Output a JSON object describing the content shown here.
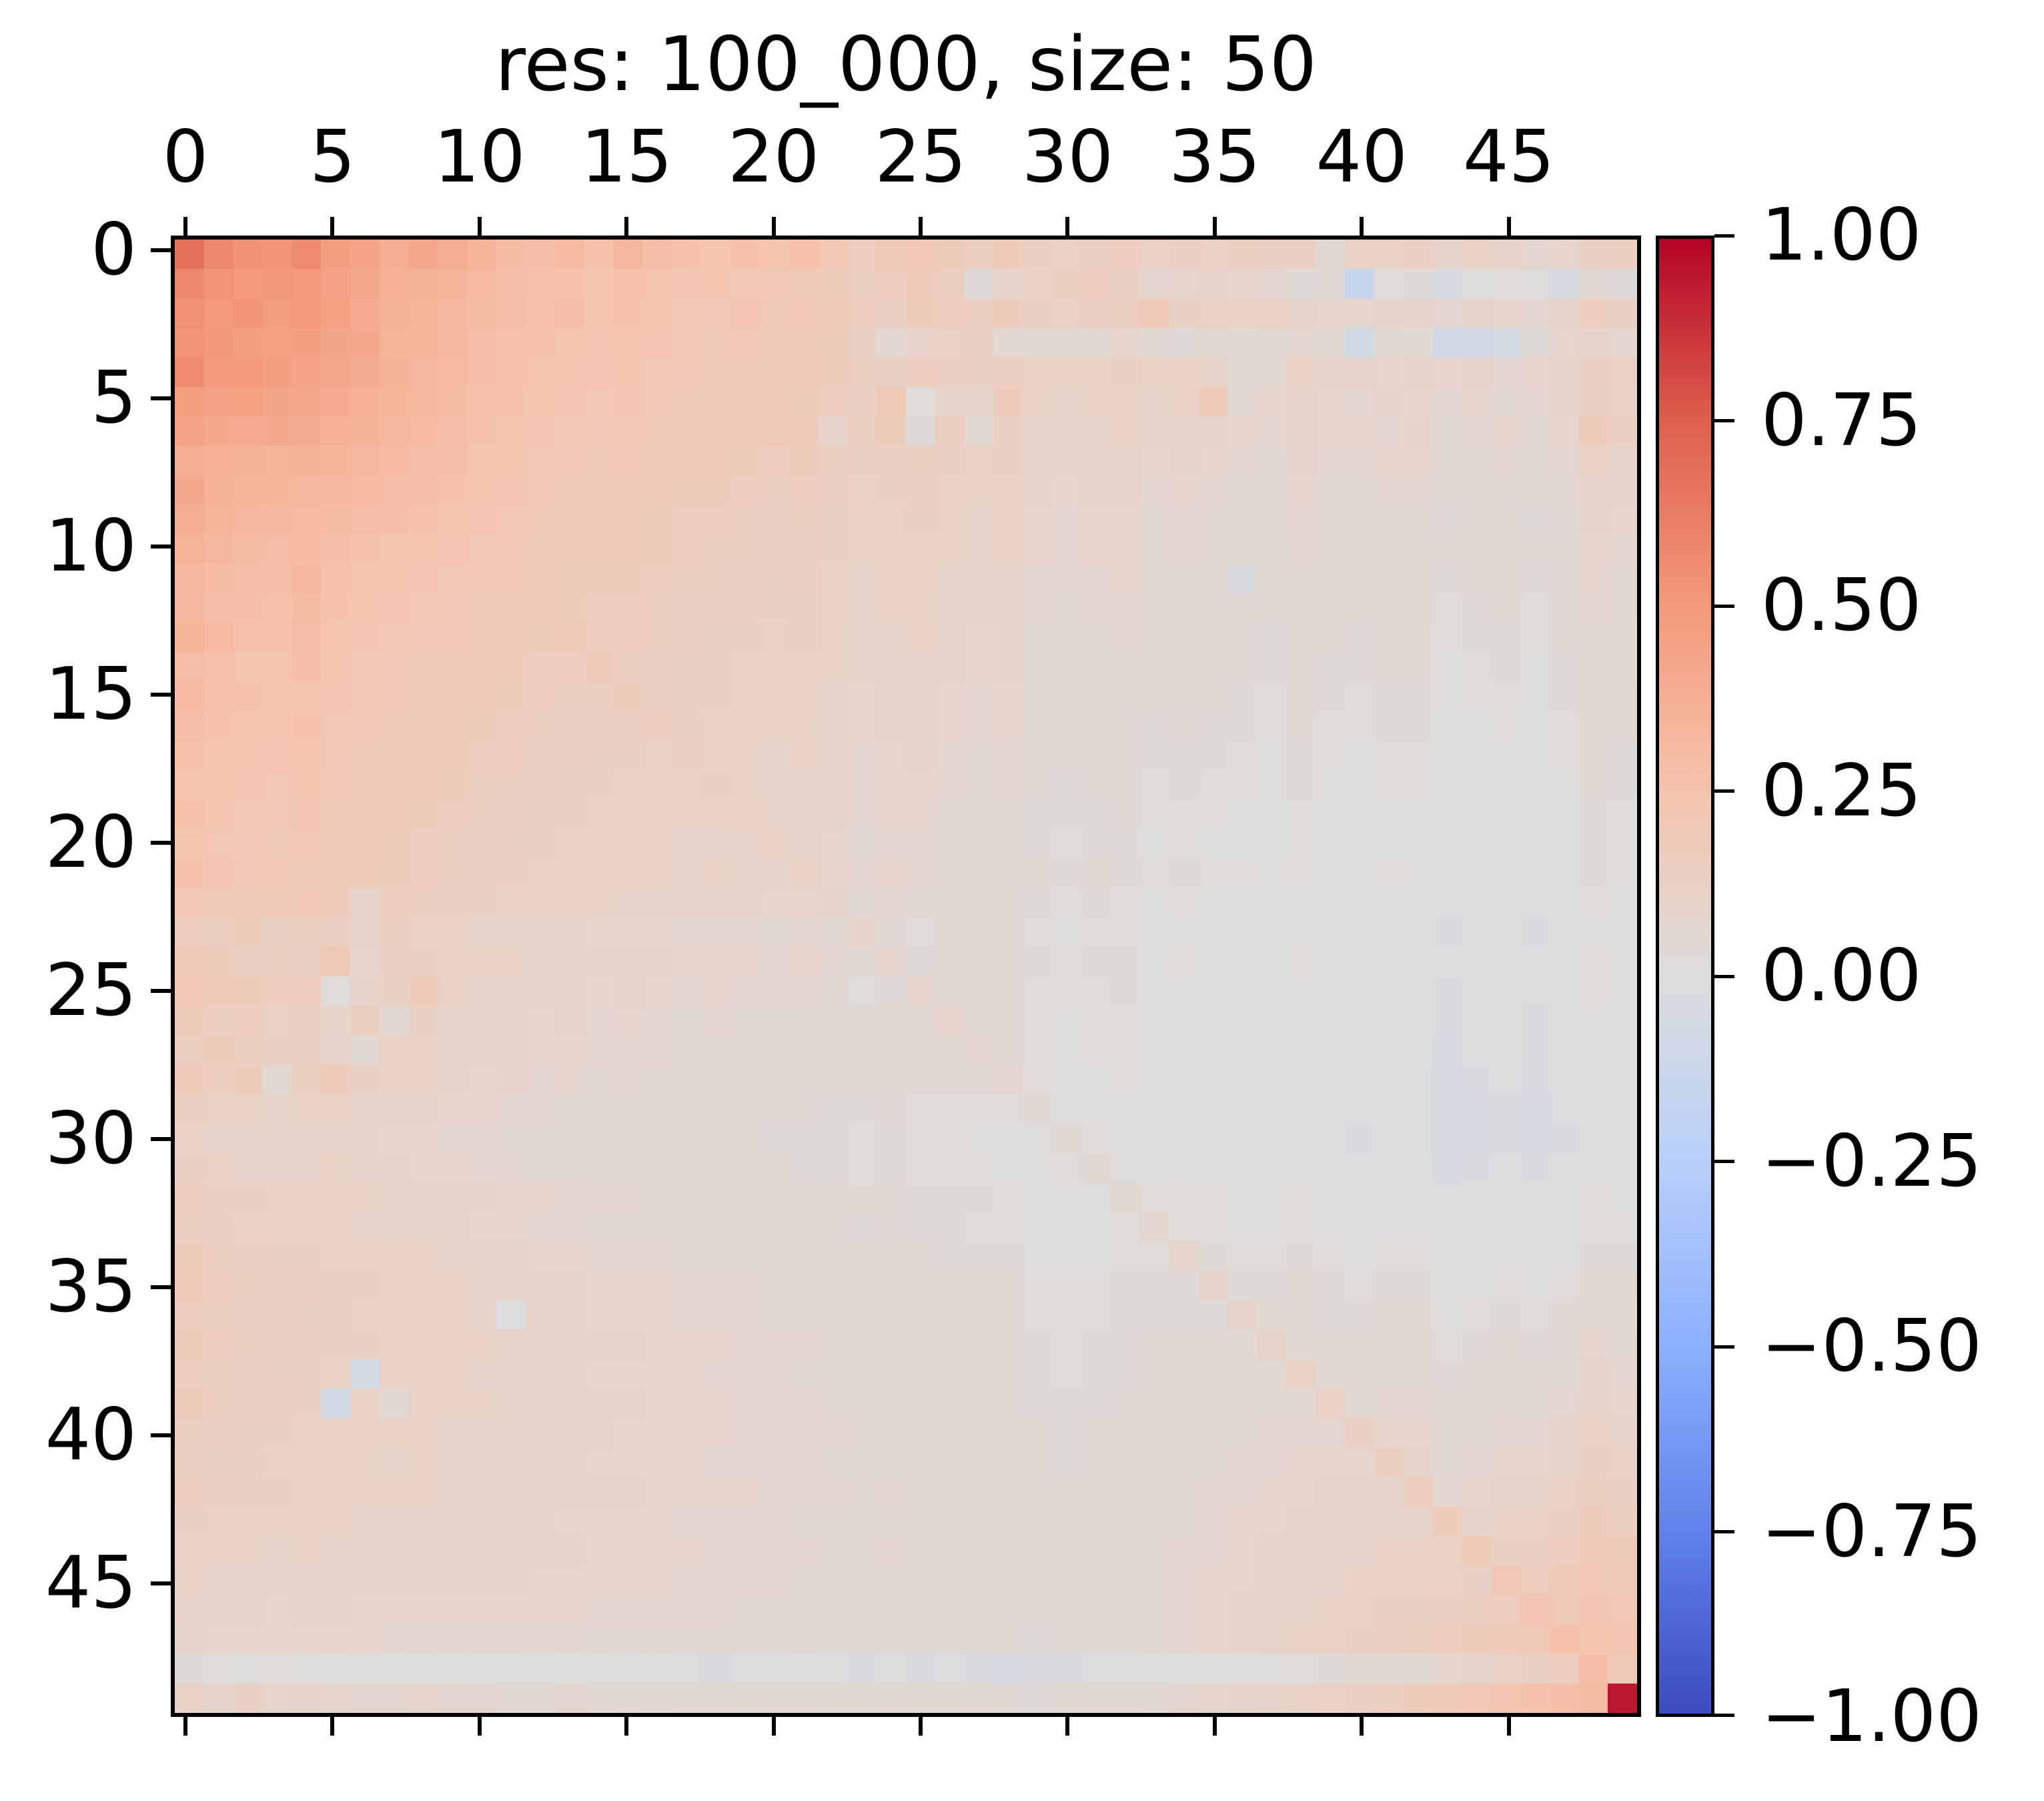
{
  "title": "res: 100_000, size: 50",
  "colors": {
    "background": "#ffffff",
    "spine": "#000000",
    "text": "#000000",
    "colormap_name": "coolwarm",
    "colormap_anchors": [
      [
        -1.0,
        [
          59,
          76,
          192
        ]
      ],
      [
        -0.75,
        [
          98,
          130,
          234
        ]
      ],
      [
        -0.5,
        [
          141,
          176,
          254
        ]
      ],
      [
        -0.25,
        [
          184,
          208,
          249
        ]
      ],
      [
        0.0,
        [
          221,
          221,
          220
        ]
      ],
      [
        0.25,
        [
          245,
          196,
          173
        ]
      ],
      [
        0.5,
        [
          244,
          154,
          123
        ]
      ],
      [
        0.75,
        [
          222,
          97,
          77
        ]
      ],
      [
        1.0,
        [
          180,
          4,
          38
        ]
      ]
    ]
  },
  "chart_data": {
    "type": "heatmap",
    "title": "res: 100_000, size: 50",
    "size": 50,
    "x_ticks": [
      0,
      5,
      10,
      15,
      20,
      25,
      30,
      35,
      40,
      45
    ],
    "y_ticks": [
      0,
      5,
      10,
      15,
      20,
      25,
      30,
      35,
      40,
      45
    ],
    "x_tick_side": "top",
    "y_tick_side": "left",
    "grid": false,
    "vmin": -1.0,
    "vmax": 1.0,
    "colorbar": {
      "position": "right",
      "tick_values": [
        1.0,
        0.75,
        0.5,
        0.25,
        0.0,
        -0.25,
        -0.5,
        -0.75,
        -1.0
      ],
      "tick_labels": [
        "1.00",
        "0.75",
        "0.50",
        "0.25",
        "0.00",
        "−0.25",
        "−0.50",
        "−0.75",
        "−1.00"
      ]
    },
    "matrix_scale": 100,
    "matrix_rows_x100": [
      "68 58 54 52 57 47 44 38 41 38 34 30 28 31 26 33 28 26 24 27 25 26 22 16 19 21 17 15 18 14 12 14 16 12 14 12 15 13 14 6 11 12 14 9 11 9 7 8 13 15",
      "58 53 50 51 50 45 41 37 36 34 31 28 27 26 25 27 25 23 24 22 21 19 17 15 16 18 15 3 10 12 15 16 13 7 8 9 8 7 3 4 -15 2 3 -5 0 2 1 -4 5 3",
      "54 50 52 48 50 46 40 36 35 33 30 29 26 28 24 26 24 22 21 23 20 21 19 16 14 17 16 15 17 13 12 14 15 20 13 12 11 12 10 8 8 9 10 7 9 8 7 9 16 13",
      "52 51 48 46 47 43 41 35 34 32 29 27 26 25 23 25 23 22 20 21 19 18 17 13 5 10 12 13 6 6 5 6 8 4 3 6 4 5 7 6 -8 5 4 -8 -7 -6 3 8 9 7",
      "57 50 50 47 44 42 39 36 33 31 28 27 25 24 23 24 22 21 20 20 18 19 17 15 13 16 14 13 15 12 11 12 13 11 12 10 5 6 11 9 9 8 10 8 9 7 8 10 14 12",
      "47 45 46 43 42 40 37 34 32 30 27 26 24 23 22 23 21 20 19 19 18 17 16 14 20 2 9 9 18 11 10 11 12 10 11 18 5 8 9 8 7 9 8 7 8 6 7 9 13 11",
      "44 41 40 41 39 37 36 33 31 29 26 25 23 22 21 22 20 19 19 18 20 18 10 15 17 3 15 6 13 10 9 10 11 9 10 9 8 7 10 8 8 7 9 6 7 8 6 8 17 14",
      "38 37 36 35 36 34 33 31 29 28 25 24 22 21 20 21 19 18 18 17 16 17 15 13 14 15 13 12 13 10 9 10 10 8 9 8 7 6 9 7 7 8 8 5 6 7 5 7 12 10",
      "41 36 35 34 33 32 31 29 28 26 24 23 21 20 19 20 18 17 17 16 15 16 14 12 13 14 12 11 12 9 8 9 9 7 8 7 6 5 8 6 6 7 7 4 5 6 4 6 10 9",
      "38 35 33 32 31 30 29 28 26 25 23 22 20 19 18 19 17 16 16 15 14 15 13 11 12 13 11 10 11 8 7 8 8 6 7 6 5 4 7 5 5 6 6 3 4 5 3 5 9 8",
      "35 32 30 29 31 28 26 25 24 23 22 21 19 18 18 18 17 16 15 15 14 14 13 11 12 12 11 10 11 8 7 8 8 6 7 6 6 5 7 5 5 6 6 4 4 5 4 5 8 7",
      "33 30 29 28 32 27 25 24 23 22 21 22 18 17 17 17 16 15 15 14 13 14 12 10 11 12 10 9 10 7 7 7 8 6 6 6 -3 4 6 5 4 5 5 3 4 4 3 5 8 6",
      "32 29 28 27 30 26 24 23 22 21 20 19 20 17 16 16 15 14 14 14 13 13 12 10 11 11 10 9 10 7 6 7 7 5 6 5 5 4 6 4 4 5 5 2 3 4 2 4 7 6",
      "34 31 27 26 29 25 23 22 21 21 19 18 17 19 16 16 15 14 13 13 12 13 11 9 10 11 9 8 9 6 6 6 7 5 5 5 4 3 5 4 3 4 4 2 3 3 2 4 6 5",
      "29 27 25 25 28 24 22 21 20 20 18 18 16 16 18 15 14 13 13 12 12 12 11 9 10 10 9 8 9 6 5 6 6 4 5 4 4 3 5 3 3 4 4 1 2 3 1 3 6 5",
      "31 27 26 25 24 23 22 21 20 19 18 17 16 15 15 17 14 13 13 12 11 12 10 8 9 10 8 7 8 5 5 5 6 4 4 4 3 2 4 3 2 3 3 1 2 2 1 3 5 4",
      "28 26 25 24 26 22 21 20 19 18 17 16 15 14 14 14 16 13 12 12 11 11 10 8 9 9 8 7 8 5 4 5 5 3 4 3 3 2 4 2 2 3 3 0 1 2 0 2 5 4",
      "27 25 24 23 25 21 20 19 18 18 16 16 14 14 13 13 12 14 12 11 10 11 9 7 8 9 7 6 7 4 4 4 5 3 3 3 2 1 3 2 1 2 2 0 1 1 0 2 4 3",
      "25 24 23 22 24 21 19 18 18 17 15 15 14 13 13 12 12 12 13 11 10 10 9 7 8 8 7 6 7 4 3 4 4 2 3 2 2 1 3 1 1 2 2 -1 0 1 -1 1 4 3",
      "27 24 22 21 23 20 19 18 17 16 15 14 13 13 12 12 11 11 11 12 10 10 9 7 8 8 6 5 6 3 3 3 4 2 2 2 1 0 2 1 0 1 1 -1 0 0 -1 1 3 2",
      "24 22 21 20 22 19 20 17 16 15 14 13 13 12 12 11 11 10 10 10 12 9 8 6 7 7 6 5 6 3 2 3 3 1 2 1 1 0 2 0 0 1 1 -2 -1 0 -2 0 3 2",
      "26 23 21 22 19 18 18 17 16 15 13 14 12 12 11 12 11 10 11 10 9 12 8 7 8 7 6 6 5 4 3 4 3 2 3 2 2 1 2 1 1 2 1 -1 0 1 -1 1 3 2",
      "22 20 19 19 21 18 10 16 15 14 13 12 12 11 11 10 10 9 9 9 8 8 10 6 7 6 6 5 5 3 2 3 2 1 2 1 1 0 1 0 0 1 0 -2 -1 0 -2 0 2 1",
      "16 15 17 13 15 14 9 15 12 11 10 10 9 9 8 8 8 7 7 7 6 7 6 9 5 2 5 4 4 2 1 2 2 0 1 0 0 -1 1 -1 -1 0 0 -3 -2 -1 -3 -1 1 0",
      "19 17 14 15 13 20 8 14 13 12 11 11 10 10 9 9 9 8 8 8 7 8 7 5 8 3 6 5 5 3 2 3 3 1 2 1 1 0 2 0 0 1 1 -2 -1 0 -2 0 2 1",
      "21 18 17 16 16 2 9 13 18 11 10 10 9 9 8 10 8 7 8 7 7 7 6 2 3 8 5 4 5 2 2 2 3 1 1 1 0 -1 1 0 -1 0 0 -3 -2 -1 -2 -1 2 1",
      "17 15 16 12 14 9 15 6 13 10 9 10 8 9 7 8 7 6 7 6 6 6 5 5 6 5 8 4 4 2 1 2 2 0 1 0 0 -1 1 -1 -1 0 0 -3 -2 -1 -3 -1 1 0",
      "15 17 15 13 13 9 6 12 11 10 9 9 8 8 7 7 7 6 6 6 5 6 5 4 5 4 4 7 4 2 1 2 2 0 1 0 0 -1 1 -1 -2 0 0 -4 -2 -1 -3 -1 1 0",
      "18 15 17 6 15 18 13 11 12 9 8 9 7 8 6 7 6 5 6 5 5 5 4 4 5 5 4 4 7 2 1 1 2 0 1 0 -1 -2 0 -1 -2 -1 -1 -4 -3 -2 -3 -2 1 0",
      "14 12 11 10 11 11 10 9 9 8 8 7 7 6 6 6 5 5 5 4 4 4 3 3 4 2 2 2 2 5 1 1 1 -1 0 -1 -1 -2 0 -2 -2 -1 -1 -5 -4 -3 -4 -2 0 -1",
      "12 10 9 9 10 10 9 8 8 7 7 6 6 5 5 5 4 4 4 4 3 3 3 2 3 2 2 1 1 1 4 2 1 0 0 -1 -2 -2 -1 -2 -3 -2 -1 -5 -4 -3 -4 -3 -1 -1",
      "13 11 10 9 10 11 9 9 8 8 7 7 6 6 5 5 5 4 4 4 4 3 3 2 3 2 2 2 1 1 2 5 1 0 1 0 -1 -1 0 -1 -2 -1 0 -4 -3 -2 -3 -2 0 0",
      "16 14 13 12 12 12 11 10 10 9 9 8 8 7 7 7 6 6 6 5 5 5 4 4 4 3 3 3 2 1 1 1 6 2 2 2 1 1 2 1 0 1 1 -2 -1 0 -1 0 2 1",
      "15 14 12 12 11 11 10 10 9 9 8 8 7 7 6 6 6 5 5 5 4 5 4 3 4 3 3 2 2 1 0 1 2 7 2 2 1 1 2 1 0 1 1 -2 -1 0 -1 0 2 2",
      "17 15 14 13 13 12 12 11 11 10 9 9 8 8 7 7 7 6 6 6 5 5 5 4 4 4 3 3 3 1 1 1 2 2 8 3 2 2 3 2 1 2 2 -1 0 1 0 1 3 3",
      "18 16 15 14 14 13 13 12 12 11 10 10 9 9 8 8 8 7 7 7 6 6 6 5 5 5 4 4 4 2 2 2 3 3 3 9 3 3 4 3 2 3 3 0 1 2 1 2 5 4",
      "16 15 14 14 13 13 12 12 11 11 10 -2 9 9 8 8 8 7 7 7 6 6 6 5 5 5 4 4 4 2 2 2 3 3 3 3 9 4 4 3 3 4 4 1 2 3 2 4 6 5",
      "17 16 15 14 14 13 13 12 12 11 11 10 10 9 9 9 8 8 8 7 7 7 6 6 6 5 5 5 4 3 2 3 3 4 4 4 4 10 5 4 4 5 5 2 3 4 3 5 8 6",
      "16 15 14 13 13 12 -6 11 12 11 10 10 9 9 8 8 8 8 7 7 7 6 6 5 6 5 5 4 4 3 2 3 3 4 4 4 5 5 11 5 5 6 6 3 4 5 4 6 9 7",
      "17 15 14 14 13 -8 12 5 12 11 11 10 10 9 9 9 8 8 8 7 7 7 6 6 6 5 5 5 4 3 3 3 4 4 5 5 5 6 6 12 6 7 7 4 5 6 5 7 10 8",
      "15 14 13 13 12 12 11 11 12 10 10 10 9 9 9 8 8 8 8 7 7 7 7 6 6 6 6 5 5 4 3 4 4 5 5 6 6 7 7 7 14 8 8 5 6 7 7 9 12 10",
      "14 13 13 12 12 11 11 10 11 10 10 9 9 9 8 8 8 8 7 7 7 7 6 6 6 6 5 5 5 4 3 4 4 5 6 6 7 7 8 8 8 15 9 6 7 8 8 10 13 11",
      "16 14 13 13 12 12 11 11 11 10 10 10 9 9 9 9 8 8 8 8 7 7 7 6 7 6 6 6 5 4 4 4 5 5 6 7 7 8 8 9 9 9 16 7 8 10 10 12 15 13",
      "13 12 12 11 11 11 10 10 10 9 9 9 9 8 8 8 8 7 7 7 7 6 6 6 6 6 6 5 5 4 4 4 5 6 6 7 8 8 9 9 10 10 10 17 10 11 12 14 17 15",
      "12 11 11 10 11 10 10 10 10 9 9 9 9 9 8 8 8 8 7 7 7 7 6 6 7 6 6 6 5 4 4 5 5 6 7 7 8 9 9 10 10 11 11 11 19 13 14 16 19 17",
      "11 10 10 9 10 9 9 9 9 9 9 9 8 8 8 8 8 7 7 7 7 6 6 6 6 6 6 5 5 4 4 5 5 6 7 8 8 9 10 10 11 12 12 12 13 21 16 18 21 19",
      "10 9 9 8 9 9 8 8 8 8 8 8 8 8 7 7 7 7 7 6 6 6 6 5 6 5 5 5 5 4 4 5 6 6 7 8 9 10 10 11 12 13 13 14 15 16 23 20 23 21",
      "9 8 8 8 8 8 8 7 7 7 7 7 7 7 6 6 6 6 6 6 5 5 5 5 5 5 5 4 4 3 4 5 5 6 7 8 9 10 11 12 13 14 15 16 17 18 20 26 25 23",
      "3 2 1 2 1 0 1 0 -1 0 -1 -1 -2 0 -1 -2 -1 -2 -3 -2 -2 -1 -2 -3 -2 -3 -2 -3 -4 -3 -3 -2 -2 -1 -1 0 0 1 2 3 4 5 6 8 9 11 13 16 28 20",
      "11 9 13 8 9 8 7 7 8 7 7 6 6 7 6 5 6 5 5 4 5 5 4 4 5 4 4 5 4 3 4 5 5 6 7 8 9 10 11 12 14 15 17 19 21 23 26 28 30 95"
    ]
  }
}
